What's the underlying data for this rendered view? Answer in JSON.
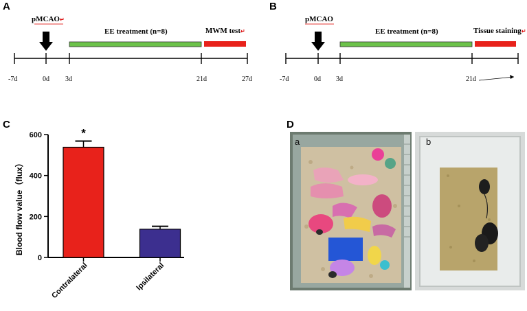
{
  "panels": {
    "A": {
      "letter": "A",
      "event": "pMCAO",
      "event_mark": "↵",
      "treatment": "EE treatment (n=8)",
      "test": "MWM test",
      "test_mark": "↵",
      "ticks": [
        "-7d",
        "0d",
        "3d",
        "21d",
        "27d"
      ],
      "colors": {
        "treatment": "#6cc24a",
        "test": "#e8221b"
      }
    },
    "B": {
      "letter": "B",
      "event": "pMCAO",
      "treatment": "EE treatment (n=8)",
      "test": "Tissue staining",
      "test_mark": "↵",
      "ticks": [
        "-7d",
        "0d",
        "3d",
        "21d"
      ],
      "colors": {
        "treatment": "#6cc24a",
        "test": "#e8221b"
      }
    },
    "C": {
      "letter": "C"
    },
    "D": {
      "letter": "D",
      "photo_a_label": "a",
      "photo_b_label": "b"
    }
  },
  "chart_data": {
    "type": "bar",
    "categories": [
      "Contralateral",
      "Ipsilateral"
    ],
    "values": [
      538,
      138
    ],
    "error": [
      30,
      14
    ],
    "significance": [
      "*",
      ""
    ],
    "bar_colors": [
      "#e8221b",
      "#3c2f8f"
    ],
    "ylabel": "Blood flow value（flux）",
    "ylim": [
      0,
      600
    ],
    "yticks": [
      0,
      200,
      400,
      600
    ],
    "grid": false,
    "legend": "none"
  }
}
